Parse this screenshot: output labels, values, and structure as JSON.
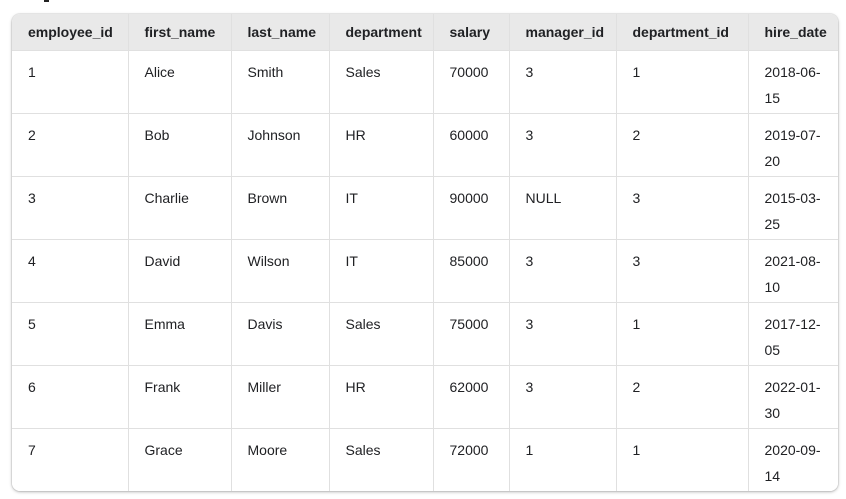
{
  "table": {
    "colors": {
      "header_bg": "#e9e9e9",
      "border": "#e0e0e0",
      "text": "#202124",
      "table_bg": "#ffffff"
    },
    "columns": [
      "employee_id",
      "first_name",
      "last_name",
      "department",
      "salary",
      "manager_id",
      "department_id",
      "hire_date"
    ],
    "rows": [
      {
        "employee_id": "1",
        "first_name": "Alice",
        "last_name": "Smith",
        "department": "Sales",
        "salary": "70000",
        "manager_id": "3",
        "department_id": "1",
        "hire_date": "2018-06-15"
      },
      {
        "employee_id": "2",
        "first_name": "Bob",
        "last_name": "Johnson",
        "department": "HR",
        "salary": "60000",
        "manager_id": "3",
        "department_id": "2",
        "hire_date": "2019-07-20"
      },
      {
        "employee_id": "3",
        "first_name": "Charlie",
        "last_name": "Brown",
        "department": "IT",
        "salary": "90000",
        "manager_id": "NULL",
        "department_id": "3",
        "hire_date": "2015-03-25"
      },
      {
        "employee_id": "4",
        "first_name": "David",
        "last_name": "Wilson",
        "department": "IT",
        "salary": "85000",
        "manager_id": "3",
        "department_id": "3",
        "hire_date": "2021-08-10"
      },
      {
        "employee_id": "5",
        "first_name": "Emma",
        "last_name": "Davis",
        "department": "Sales",
        "salary": "75000",
        "manager_id": "3",
        "department_id": "1",
        "hire_date": "2017-12-05"
      },
      {
        "employee_id": "6",
        "first_name": "Frank",
        "last_name": "Miller",
        "department": "HR",
        "salary": "62000",
        "manager_id": "3",
        "department_id": "2",
        "hire_date": "2022-01-30"
      },
      {
        "employee_id": "7",
        "first_name": "Grace",
        "last_name": "Moore",
        "department": "Sales",
        "salary": "72000",
        "manager_id": "1",
        "department_id": "1",
        "hire_date": "2020-09-14"
      }
    ]
  }
}
